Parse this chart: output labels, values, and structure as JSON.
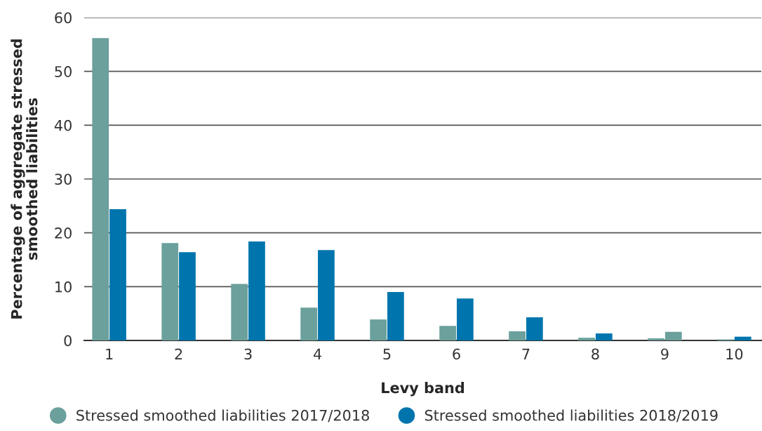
{
  "chart_data": {
    "type": "bar",
    "xlabel": "Levy band",
    "ylabel": "Percentage of aggregate stressed\nsmoothed liabilities",
    "categories": [
      "1",
      "2",
      "3",
      "4",
      "5",
      "6",
      "7",
      "8",
      "9",
      "10"
    ],
    "series": [
      {
        "name": "Stressed smoothed liabilities 2017/2018",
        "color": "#6ba09c",
        "values": [
          56.2,
          18.1,
          10.5,
          6.1,
          3.9,
          2.7,
          1.7,
          0.5,
          0.4,
          0.2
        ]
      },
      {
        "name": "Stressed smoothed liabilities 2018/2019",
        "color": "#0075ad",
        "colors": [
          "#0075ad",
          "#0075ad",
          "#0075ad",
          "#0075ad",
          "#0075ad",
          "#0075ad",
          "#0075ad",
          "#0075ad",
          "#6ba09c",
          "#0075ad"
        ],
        "values": [
          24.4,
          16.4,
          18.4,
          16.8,
          9.0,
          7.8,
          4.3,
          1.3,
          1.6,
          0.7
        ]
      }
    ],
    "ylim": [
      0,
      60
    ],
    "yticks": [
      0,
      10,
      20,
      30,
      40,
      50,
      60
    ],
    "grid": "y",
    "legend": "bottom"
  }
}
